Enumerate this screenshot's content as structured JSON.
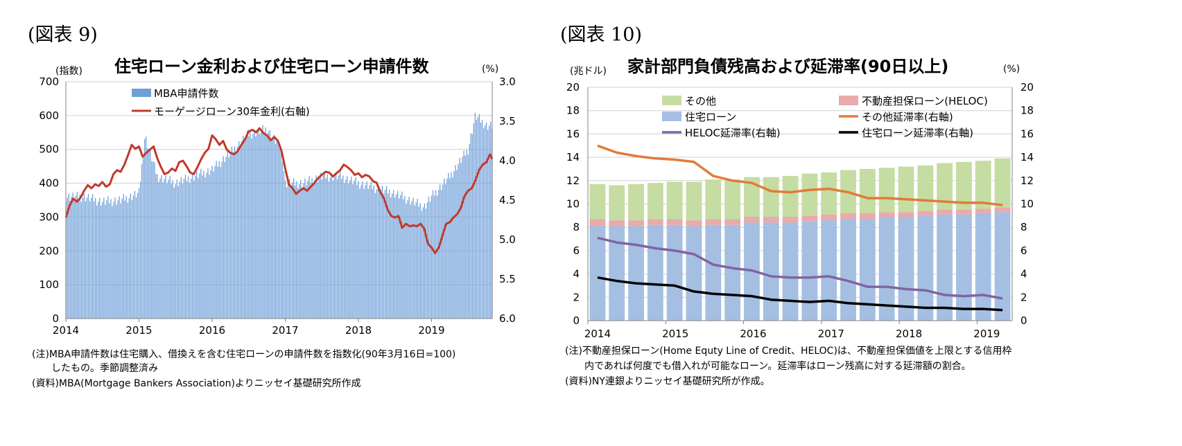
{
  "left": {
    "fig_label": "(図表 9)",
    "title": "住宅ローン金利および住宅ローン申請件数",
    "left_unit": "(指数)",
    "right_unit": "(%)",
    "notes": [
      "(注)MBA申請件数は住宅購入、借換えを含む住宅ローンの申請件数を指数化(90年3月16日=100)",
      "　　したもの。季節調整済み",
      "(資料)MBA(Mortgage Bankers Association)よりニッセイ基礎研究所作成"
    ]
  },
  "right": {
    "fig_label": "(図表 10)",
    "title": "家計部門負債残高および延滞率(90日以上)",
    "left_unit": "(兆ドル)",
    "right_unit": "(%)",
    "notes": [
      "(注)不動産担保ローン(Home Equty Line of Credit、HELOC)は、不動産担保価値を上限とする信用枠",
      "　　内であれば何度でも借入れが可能なローン。延滞率はローン残高に対する延滞額の割合。",
      "(資料)NY連銀よりニッセイ基礎研究所が作成。"
    ]
  },
  "chart_data": [
    {
      "type": "bar",
      "title": "住宅ローン金利および住宅ローン申請件数",
      "y_left_ticks": [
        "0",
        "100",
        "200",
        "300",
        "400",
        "500",
        "600",
        "700"
      ],
      "ylim_left": [
        0,
        700
      ],
      "y_right_ticks": [
        "3.0",
        "3.5",
        "4.0",
        "4.5",
        "5.0",
        "5.5",
        "6.0"
      ],
      "ylim_right": [
        3.0,
        6.0
      ],
      "right_axis_inverted": true,
      "x_ticks": [
        "2014",
        "2015",
        "2016",
        "2017",
        "2018",
        "2019"
      ],
      "xlim": [
        2014,
        2019.83
      ],
      "legend": [
        "MBA申請件数",
        "モーゲージローン30年金利(右軸)"
      ],
      "colors": {
        "bars": "#6f9fd8",
        "rate": "#c0392b"
      },
      "series": [
        {
          "name": "MBA申請件数",
          "kind": "bar",
          "x": [
            2014.0,
            2014.25,
            2014.5,
            2014.75,
            2015.0,
            2015.08,
            2015.25,
            2015.5,
            2015.75,
            2016.0,
            2016.25,
            2016.5,
            2016.75,
            2016.95,
            2017.0,
            2017.25,
            2017.5,
            2017.75,
            2018.0,
            2018.25,
            2018.5,
            2018.75,
            2018.9,
            2019.0,
            2019.25,
            2019.5,
            2019.6,
            2019.75,
            2019.83
          ],
          "values": [
            360,
            360,
            345,
            350,
            370,
            540,
            420,
            400,
            420,
            440,
            490,
            545,
            560,
            500,
            400,
            400,
            420,
            420,
            400,
            385,
            370,
            345,
            330,
            360,
            420,
            500,
            600,
            570,
            570
          ]
        },
        {
          "name": "モーゲージローン30年金利(右軸)",
          "kind": "line",
          "axis": "right",
          "x": [
            2014.0,
            2014.05,
            2014.1,
            2014.15,
            2014.2,
            2014.25,
            2014.3,
            2014.35,
            2014.4,
            2014.45,
            2014.5,
            2014.55,
            2014.6,
            2014.65,
            2014.7,
            2014.75,
            2014.8,
            2014.85,
            2014.9,
            2014.95,
            2015.0,
            2015.05,
            2015.1,
            2015.15,
            2015.2,
            2015.25,
            2015.3,
            2015.35,
            2015.4,
            2015.45,
            2015.5,
            2015.55,
            2015.6,
            2015.65,
            2015.7,
            2015.75,
            2015.8,
            2015.85,
            2015.9,
            2015.95,
            2016.0,
            2016.05,
            2016.1,
            2016.15,
            2016.2,
            2016.25,
            2016.3,
            2016.35,
            2016.4,
            2016.45,
            2016.5,
            2016.55,
            2016.6,
            2016.65,
            2016.7,
            2016.75,
            2016.8,
            2016.85,
            2016.9,
            2016.95,
            2017.0,
            2017.05,
            2017.1,
            2017.15,
            2017.2,
            2017.25,
            2017.3,
            2017.35,
            2017.4,
            2017.45,
            2017.5,
            2017.55,
            2017.6,
            2017.65,
            2017.7,
            2017.75,
            2017.8,
            2017.85,
            2017.9,
            2017.95,
            2018.0,
            2018.05,
            2018.1,
            2018.15,
            2018.2,
            2018.25,
            2018.3,
            2018.35,
            2018.4,
            2018.45,
            2018.5,
            2018.55,
            2018.6,
            2018.65,
            2018.7,
            2018.75,
            2018.8,
            2018.85,
            2018.9,
            2018.95,
            2019.0,
            2019.05,
            2019.1,
            2019.15,
            2019.2,
            2019.25,
            2019.3,
            2019.35,
            2019.4,
            2019.45,
            2019.5,
            2019.55,
            2019.6,
            2019.65,
            2019.7,
            2019.75,
            2019.8,
            2019.83
          ],
          "values": [
            4.72,
            4.57,
            4.48,
            4.52,
            4.47,
            4.38,
            4.31,
            4.35,
            4.3,
            4.32,
            4.27,
            4.33,
            4.3,
            4.17,
            4.12,
            4.14,
            4.05,
            3.93,
            3.8,
            3.85,
            3.82,
            3.95,
            3.9,
            3.86,
            3.82,
            3.97,
            4.08,
            4.17,
            4.15,
            4.1,
            4.13,
            4.02,
            4.0,
            4.07,
            4.15,
            4.17,
            4.08,
            3.98,
            3.9,
            3.85,
            3.68,
            3.73,
            3.8,
            3.75,
            3.86,
            3.9,
            3.92,
            3.88,
            3.8,
            3.73,
            3.63,
            3.61,
            3.64,
            3.59,
            3.65,
            3.68,
            3.74,
            3.7,
            3.75,
            3.88,
            4.1,
            4.3,
            4.35,
            4.42,
            4.38,
            4.35,
            4.38,
            4.33,
            4.28,
            4.22,
            4.18,
            4.14,
            4.15,
            4.2,
            4.16,
            4.12,
            4.05,
            4.08,
            4.12,
            4.18,
            4.16,
            4.21,
            4.18,
            4.2,
            4.26,
            4.28,
            4.4,
            4.48,
            4.62,
            4.7,
            4.72,
            4.7,
            4.85,
            4.8,
            4.83,
            4.82,
            4.83,
            4.8,
            4.86,
            5.05,
            5.1,
            5.17,
            5.1,
            4.95,
            4.8,
            4.78,
            4.72,
            4.68,
            4.6,
            4.45,
            4.38,
            4.35,
            4.25,
            4.12,
            4.05,
            4.02,
            3.92,
            3.98
          ]
        }
      ]
    },
    {
      "type": "bar",
      "title": "家計部門負債残高および延滞率(90日以上)",
      "stacked": true,
      "y_left_ticks": [
        "0",
        "2",
        "4",
        "6",
        "8",
        "10",
        "12",
        "14",
        "16",
        "18",
        "20"
      ],
      "ylim_left": [
        0,
        20
      ],
      "y_right_ticks": [
        "0",
        "2",
        "4",
        "6",
        "8",
        "10",
        "12",
        "14",
        "16",
        "18",
        "20"
      ],
      "ylim_right": [
        0,
        20
      ],
      "x_ticks": [
        "2014",
        "2015",
        "2016",
        "2017",
        "2018",
        "2019"
      ],
      "xlim": [
        2014,
        2019.45
      ],
      "categories": [
        "2014Q1",
        "2014Q2",
        "2014Q3",
        "2014Q4",
        "2015Q1",
        "2015Q2",
        "2015Q3",
        "2015Q4",
        "2016Q1",
        "2016Q2",
        "2016Q3",
        "2016Q4",
        "2017Q1",
        "2017Q2",
        "2017Q3",
        "2017Q4",
        "2018Q1",
        "2018Q2",
        "2018Q3",
        "2018Q4",
        "2019Q1",
        "2019Q2"
      ],
      "legend": [
        "その他",
        "不動産担保ローン(HELOC)",
        "住宅ローン",
        "その他延滞率(右軸)",
        "HELOC延滞率(右軸)",
        "住宅ローン延滞率(右軸)"
      ],
      "colors": {
        "mortgage": "#a4bfe2",
        "heloc": "#e8aaaa",
        "other": "#c5dca2",
        "other_rate": "#e07b39",
        "heloc_rate": "#8064a2",
        "mortgage_rate": "#000000"
      },
      "series": [
        {
          "name": "住宅ローン",
          "kind": "bar",
          "values": [
            8.1,
            8.1,
            8.1,
            8.2,
            8.2,
            8.1,
            8.2,
            8.2,
            8.4,
            8.4,
            8.4,
            8.5,
            8.6,
            8.7,
            8.7,
            8.9,
            8.9,
            9.0,
            9.1,
            9.1,
            9.2,
            9.3
          ]
        },
        {
          "name": "不動産担保ローン(HELOC)",
          "kind": "bar",
          "values": [
            0.6,
            0.5,
            0.5,
            0.5,
            0.5,
            0.5,
            0.5,
            0.5,
            0.5,
            0.5,
            0.5,
            0.5,
            0.5,
            0.5,
            0.5,
            0.4,
            0.4,
            0.4,
            0.4,
            0.4,
            0.4,
            0.4
          ]
        },
        {
          "name": "その他",
          "kind": "bar",
          "values": [
            3.0,
            3.0,
            3.1,
            3.1,
            3.2,
            3.3,
            3.4,
            3.4,
            3.4,
            3.4,
            3.5,
            3.6,
            3.6,
            3.7,
            3.8,
            3.8,
            3.9,
            3.9,
            4.0,
            4.1,
            4.1,
            4.2
          ]
        },
        {
          "name": "その他延滞率(右軸)",
          "kind": "line",
          "values": [
            15.0,
            14.4,
            14.1,
            13.9,
            13.8,
            13.6,
            12.4,
            12.0,
            11.8,
            11.1,
            11.0,
            11.2,
            11.3,
            11.0,
            10.5,
            10.5,
            10.4,
            10.3,
            10.2,
            10.1,
            10.1,
            9.9
          ]
        },
        {
          "name": "HELOC延滞率(右軸)",
          "kind": "line",
          "values": [
            7.1,
            6.7,
            6.5,
            6.2,
            6.0,
            5.7,
            4.8,
            4.5,
            4.3,
            3.8,
            3.7,
            3.7,
            3.8,
            3.4,
            2.9,
            2.9,
            2.7,
            2.6,
            2.2,
            2.1,
            2.2,
            1.9
          ]
        },
        {
          "name": "住宅ローン延滞率(右軸)",
          "kind": "line",
          "values": [
            3.7,
            3.4,
            3.2,
            3.1,
            3.0,
            2.5,
            2.3,
            2.2,
            2.1,
            1.8,
            1.7,
            1.6,
            1.7,
            1.5,
            1.4,
            1.3,
            1.2,
            1.1,
            1.1,
            1.0,
            1.0,
            0.9
          ]
        }
      ]
    }
  ]
}
